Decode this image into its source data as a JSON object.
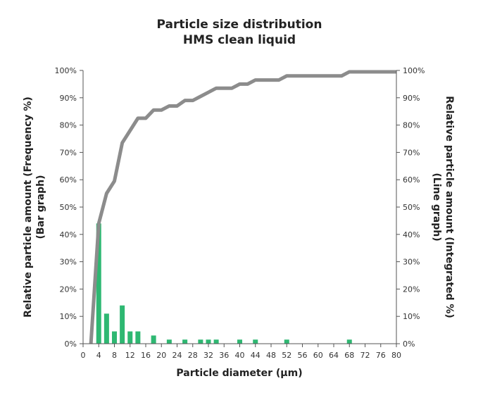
{
  "chart_data": {
    "type": "bar",
    "title": "Particle size distribution",
    "subtitle": "HMS clean liquid",
    "xlabel": "Particle diameter (µm)",
    "ylabel_left": [
      "Relative particle amount (Frequency %)",
      "(Bar graph)"
    ],
    "ylabel_right": [
      "Relative particle amount (Integrated %)",
      "(Line graph)"
    ],
    "xlim": [
      0,
      80
    ],
    "ylim": [
      0,
      100
    ],
    "x_ticks": [
      "0",
      "4",
      "8",
      "12",
      "16",
      "20",
      "24",
      "28",
      "32",
      "36",
      "40",
      "44",
      "48",
      "52",
      "56",
      "60",
      "64",
      "68",
      "72",
      "76",
      "80"
    ],
    "y_ticks": [
      "0%",
      "10%",
      "20%",
      "30%",
      "40%",
      "50%",
      "60%",
      "70%",
      "80%",
      "90%",
      "100%"
    ],
    "grid": false,
    "colors": {
      "bar": "#2eb872",
      "line": "#8c8c8c"
    },
    "series": [
      {
        "type": "bar",
        "name": "Bar graph",
        "x": [
          4,
          6,
          8,
          10,
          12,
          14,
          18,
          22,
          26,
          30,
          32,
          34,
          40,
          44,
          52,
          68
        ],
        "values": [
          44,
          11,
          4.5,
          14,
          4.5,
          4.5,
          3,
          1.5,
          1.5,
          1.5,
          1.5,
          1.5,
          1.5,
          1.5,
          1.5,
          1.5
        ]
      },
      {
        "type": "line",
        "name": "Line graph",
        "x": [
          2,
          4,
          6,
          8,
          10,
          12,
          14,
          16,
          18,
          20,
          22,
          24,
          26,
          28,
          30,
          32,
          34,
          36,
          38,
          40,
          42,
          44,
          46,
          48,
          50,
          52,
          54,
          56,
          58,
          60,
          62,
          64,
          66,
          68,
          70,
          72,
          74,
          76,
          78,
          80
        ],
        "values": [
          0,
          44,
          55,
          59.5,
          73.5,
          78,
          82.5,
          82.5,
          85.5,
          85.5,
          87,
          87,
          89,
          89,
          90.5,
          92,
          93.5,
          93.5,
          93.5,
          95,
          95,
          96.5,
          96.5,
          96.5,
          96.5,
          98,
          98,
          98,
          98,
          98,
          98,
          98,
          98,
          99.5,
          99.5,
          99.5,
          99.5,
          99.5,
          99.5,
          99.5
        ]
      }
    ]
  }
}
